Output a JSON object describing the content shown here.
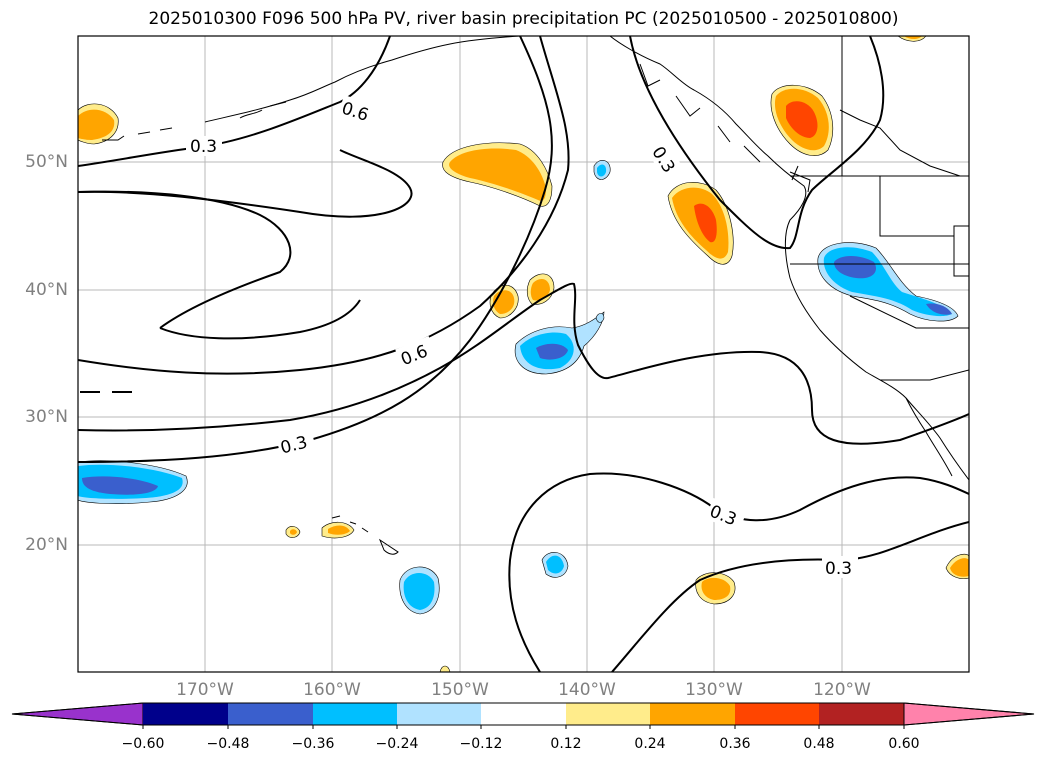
{
  "title": "2025010300 F096 500 hPa PV, river basin precipitation PC (2025010500 - 2025010800)",
  "lat_labels": [
    "50°N",
    "40°N",
    "30°N",
    "20°N"
  ],
  "lon_labels": [
    "170°W",
    "160°W",
    "150°W",
    "140°W",
    "130°W",
    "120°W"
  ],
  "contour_labels": [
    "0.3",
    "0.6",
    "0.3",
    "0.6",
    "0.3",
    "0.3",
    "0.3"
  ],
  "colorbar": {
    "tick_labels": [
      "−0.60",
      "−0.48",
      "−0.36",
      "−0.24",
      "−0.12",
      "0.12",
      "0.24",
      "0.36",
      "0.48",
      "0.60"
    ],
    "colors": [
      "#9932cc",
      "#00008b",
      "#3a5fcd",
      "#00bfff",
      "#b0e2ff",
      "#ffffff",
      "#ffec8b",
      "#ffa500",
      "#ff4500",
      "#b22222",
      "#ff82ab"
    ]
  },
  "colors": {
    "neg_light": "#b0e2ff",
    "neg_mid": "#00bfff",
    "neg_dark": "#3a5fcd",
    "pos_light": "#ffec8b",
    "pos_mid": "#ffa500",
    "pos_dark": "#ff4500"
  }
}
